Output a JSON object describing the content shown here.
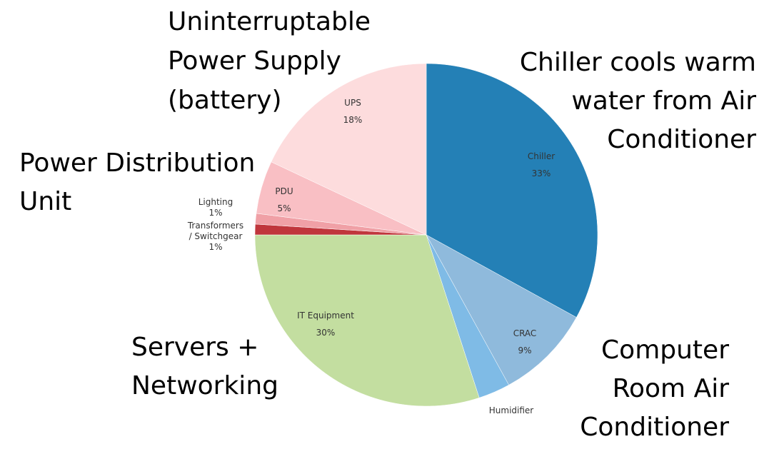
{
  "chart_data": {
    "type": "pie",
    "slices": [
      {
        "name": "Chiller",
        "value": 33,
        "value_label": "33%",
        "color": "#2480b6"
      },
      {
        "name": "CRAC",
        "value": 9,
        "value_label": "9%",
        "color": "#8fbadc"
      },
      {
        "name": "Humidifier",
        "value": 3,
        "value_label": "",
        "color": "#7fbbe6"
      },
      {
        "name": "IT Equipment",
        "value": 30,
        "value_label": "30%",
        "color": "#c3dea0"
      },
      {
        "name": "Transformers / Switchgear",
        "value": 1,
        "value_label": "1%",
        "color": "#c0363c"
      },
      {
        "name": "Lighting",
        "value": 1,
        "value_label": "1%",
        "color": "#f0a0a6"
      },
      {
        "name": "PDU",
        "value": 5,
        "value_label": "5%",
        "color": "#f9bfc4"
      },
      {
        "name": "UPS",
        "value": 18,
        "value_label": "18%",
        "color": "#fddcdd"
      }
    ],
    "slice_label_lines": {
      "transformers": [
        "Transformers",
        "/ Switchgear",
        "1%"
      ]
    },
    "annotations": {
      "ups": [
        "Uninterruptable",
        "Power Supply",
        "(battery)"
      ],
      "chiller": [
        "Chiller cools warm",
        "water from Air",
        "Conditioner"
      ],
      "pdu": [
        "Power Distribution",
        "Unit"
      ],
      "it": [
        "Servers +",
        "Networking"
      ],
      "crac": [
        "Computer",
        "Room Air",
        "Conditioner"
      ]
    }
  }
}
